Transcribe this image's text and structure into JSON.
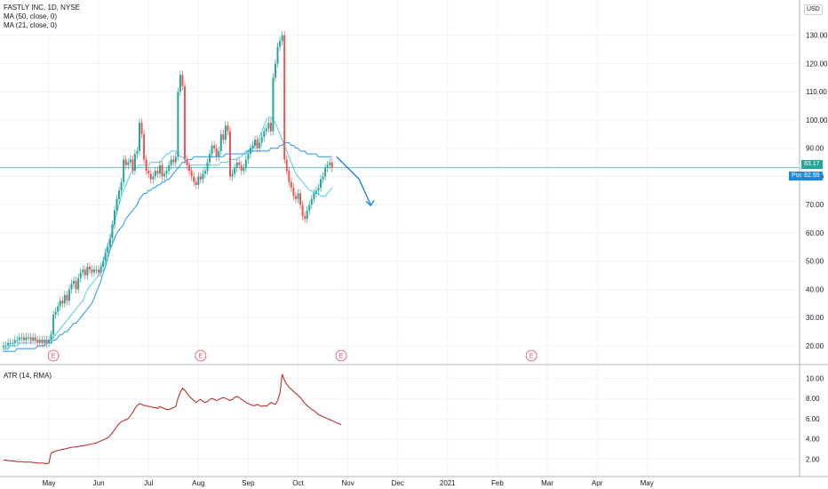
{
  "header": {
    "title": "FASTLY INC, 1D, NYSE",
    "ma50": "MA (50, close, 0)",
    "ma21": "MA (21, close, 0)",
    "atr": "ATR (14, RMA)",
    "currency": "USD",
    "price_tag": "83.17",
    "post_label": "Post",
    "post_tag": "82.99",
    "earnings_badge": "E"
  },
  "colors": {
    "up": "#26a69a",
    "down": "#ef5350",
    "ma50": "#2196f3",
    "ma21": "#4dd0e1",
    "atr": "#b71c1c",
    "arrow": "#1e88e5",
    "grid": "#f0f3fa"
  },
  "chart_data": [
    {
      "type": "candlestick",
      "title": "FASTLY INC, 1D, NYSE",
      "ylim": [
        14,
        140
      ],
      "yticks": [
        "130.00",
        "120.00",
        "110.00",
        "100.00",
        "90.00",
        "80.00",
        "70.00",
        "60.00",
        "50.00",
        "40.00",
        "30.00",
        "20.00"
      ],
      "ytick_values": [
        130,
        120,
        110,
        100,
        90,
        80,
        70,
        60,
        50,
        40,
        30,
        20
      ],
      "xticks": [
        "May",
        "Jun",
        "Jul",
        "Aug",
        "Sep",
        "Oct",
        "Nov",
        "Dec",
        "2021",
        "Feb",
        "Mar",
        "Apr",
        "May"
      ],
      "xtick_idx": [
        20,
        42,
        64,
        86,
        108,
        130,
        152,
        174,
        196,
        218,
        240,
        262,
        284
      ],
      "closes": [
        20,
        20,
        21,
        21,
        21,
        22,
        22,
        23,
        23,
        22,
        23,
        23,
        22,
        23,
        22,
        21,
        22,
        21,
        22,
        21,
        22,
        24,
        31,
        32,
        34,
        36,
        35,
        38,
        36,
        40,
        42,
        43,
        40,
        44,
        46,
        47,
        45,
        48,
        47,
        46,
        47,
        47,
        46,
        48,
        50,
        53,
        55,
        58,
        63,
        68,
        72,
        75,
        78,
        86,
        84,
        85,
        86,
        82,
        88,
        89,
        99,
        95,
        86,
        82,
        81,
        79,
        80,
        82,
        81,
        84,
        80,
        81,
        82,
        84,
        86,
        85,
        87,
        110,
        116,
        112,
        86,
        84,
        82,
        80,
        78,
        77,
        80,
        79,
        81,
        82,
        85,
        88,
        91,
        90,
        87,
        89,
        95,
        93,
        98,
        96,
        80,
        81,
        83,
        85,
        84,
        82,
        83,
        86,
        88,
        90,
        91,
        93,
        90,
        92,
        94,
        96,
        97,
        99,
        96,
        115,
        120,
        126,
        128,
        130,
        86,
        82,
        78,
        76,
        73,
        72,
        74,
        70,
        66,
        65,
        68,
        70,
        72,
        74,
        75,
        76,
        79,
        80,
        83,
        84,
        85,
        83
      ],
      "ma50": [
        18,
        18,
        18,
        18,
        18,
        18,
        19,
        19,
        19,
        19,
        19,
        19,
        19,
        19,
        19,
        20,
        20,
        20,
        20,
        21,
        21,
        21,
        22,
        22,
        23,
        24,
        24,
        25,
        25,
        26,
        27,
        28,
        28,
        29,
        30,
        31,
        32,
        33,
        34,
        35,
        37,
        39,
        41,
        43,
        46,
        48,
        51,
        54,
        56,
        58,
        60,
        61,
        62,
        63,
        65,
        66,
        67,
        68,
        69,
        70,
        72,
        73,
        74,
        74,
        75,
        75,
        76,
        76,
        77,
        77,
        78,
        78,
        79,
        79,
        80,
        81,
        82,
        83,
        84,
        85,
        85,
        86,
        86,
        86,
        87,
        87,
        87,
        87,
        87,
        87,
        87,
        87,
        87,
        87,
        87,
        87,
        87,
        87,
        88,
        88,
        88,
        88,
        88,
        88,
        88,
        88,
        88,
        88,
        89,
        89,
        89,
        89,
        89,
        89,
        89,
        89,
        89,
        89,
        90,
        90,
        90,
        90,
        91,
        91,
        92,
        92,
        92,
        91,
        91,
        90,
        90,
        89,
        89,
        89,
        88,
        88,
        88,
        88,
        88,
        87,
        87,
        87,
        87,
        87,
        87,
        87
      ],
      "ma21": [
        19,
        19,
        19,
        20,
        20,
        20,
        20,
        21,
        21,
        21,
        21,
        21,
        21,
        22,
        22,
        22,
        22,
        22,
        22,
        22,
        22,
        22,
        23,
        24,
        25,
        26,
        27,
        28,
        29,
        30,
        31,
        32,
        33,
        34,
        35,
        36,
        38,
        40,
        41,
        42,
        43,
        44,
        45,
        47,
        50,
        53,
        56,
        58,
        61,
        64,
        67,
        70,
        73,
        75,
        77,
        79,
        81,
        82,
        83,
        83,
        84,
        84,
        84,
        84,
        84,
        85,
        85,
        85,
        85,
        85,
        86,
        87,
        88,
        88,
        89,
        89,
        89,
        88,
        87,
        87,
        86,
        85,
        84,
        84,
        84,
        84,
        84,
        84,
        84,
        84,
        84,
        84,
        84,
        84,
        84,
        84,
        85,
        85,
        85,
        85,
        86,
        86,
        86,
        86,
        87,
        87,
        88,
        89,
        89,
        90,
        90,
        91,
        92,
        94,
        96,
        98,
        100,
        101,
        101,
        100,
        99,
        97,
        95,
        93,
        91,
        89,
        87,
        85,
        83,
        81,
        80,
        79,
        78,
        77,
        76,
        75,
        75,
        74,
        74,
        74,
        73,
        73,
        73,
        74,
        75,
        76
      ],
      "projection": [
        87,
        83,
        79,
        70
      ],
      "price_level": 83.17
    },
    {
      "type": "line",
      "title": "ATR (14, RMA)",
      "ylim": [
        0.8,
        11
      ],
      "yticks": [
        "10.00",
        "8.00",
        "6.00",
        "4.00",
        "2.00"
      ],
      "ytick_values": [
        10,
        8,
        6,
        4,
        2
      ],
      "values": [
        1.9,
        1.9,
        1.85,
        1.85,
        1.8,
        1.8,
        1.75,
        1.75,
        1.75,
        1.7,
        1.7,
        1.7,
        1.7,
        1.65,
        1.65,
        1.6,
        1.6,
        1.6,
        1.6,
        1.55,
        1.6,
        2.6,
        2.7,
        2.8,
        2.85,
        2.9,
        2.95,
        3.0,
        3.05,
        3.1,
        3.15,
        3.2,
        3.2,
        3.25,
        3.3,
        3.3,
        3.35,
        3.4,
        3.45,
        3.5,
        3.55,
        3.6,
        3.7,
        3.8,
        3.9,
        4.0,
        4.1,
        4.3,
        4.6,
        4.9,
        5.2,
        5.5,
        5.7,
        5.8,
        5.9,
        6.0,
        6.3,
        6.6,
        7.0,
        7.3,
        7.5,
        7.4,
        7.3,
        7.3,
        7.2,
        7.2,
        7.1,
        7.1,
        7.0,
        7.2,
        7.1,
        7.0,
        6.9,
        6.9,
        7.0,
        7.1,
        7.2,
        8.0,
        8.6,
        9.0,
        8.8,
        8.5,
        8.2,
        8.0,
        7.8,
        7.6,
        7.8,
        7.9,
        7.7,
        7.6,
        7.7,
        7.9,
        8.0,
        7.9,
        7.8,
        7.9,
        8.0,
        8.1,
        8.0,
        7.9,
        7.8,
        7.9,
        8.1,
        8.2,
        8.1,
        7.9,
        7.8,
        7.6,
        7.5,
        7.4,
        7.3,
        7.3,
        7.4,
        7.3,
        7.2,
        7.3,
        7.2,
        7.4,
        7.6,
        7.5,
        7.4,
        7.8,
        8.5,
        10.4,
        9.8,
        9.4,
        9.1,
        8.9,
        8.7,
        8.5,
        8.3,
        8.1,
        7.8,
        7.5,
        7.3,
        7.1,
        6.9,
        6.8,
        6.6,
        6.4,
        6.3,
        6.2,
        6.1,
        6.0,
        5.9,
        5.8,
        5.7,
        5.6,
        5.5,
        5.4
      ]
    }
  ],
  "earnings_idx": [
    22,
    87,
    149,
    233
  ]
}
